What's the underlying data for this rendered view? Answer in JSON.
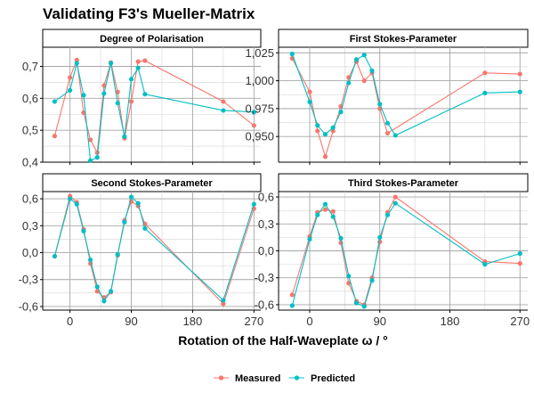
{
  "title": "Validating F3's Mueller-Matrix",
  "xlabel": "Rotation of the Half-Waveplate ω / °",
  "legend": [
    {
      "label": "Measured",
      "color": "#F8766D"
    },
    {
      "label": "Predicted",
      "color": "#00BFC4"
    }
  ],
  "chart_data": [
    {
      "type": "line",
      "title": "Degree of Polarisation",
      "xlim": [
        -40,
        280
      ],
      "ylim": [
        0.4,
        0.76
      ],
      "x_ticks": [
        0,
        90,
        180,
        270
      ],
      "y_ticks": [
        0.4,
        0.5,
        0.6,
        0.7
      ],
      "y_tick_labels": [
        "0,4",
        "0,5",
        "0,6",
        "0,7"
      ],
      "x_tick_labels": [],
      "series": [
        {
          "name": "Measured",
          "color": "#F8766D",
          "x": [
            -22.5,
            0,
            10,
            20,
            30,
            40,
            50,
            60,
            70,
            80,
            90,
            100,
            110,
            225,
            270
          ],
          "y": [
            0.482,
            0.665,
            0.72,
            0.555,
            0.47,
            0.43,
            0.64,
            0.712,
            0.62,
            0.475,
            0.59,
            0.715,
            0.718,
            0.59,
            0.515
          ]
        },
        {
          "name": "Predicted",
          "color": "#00BFC4",
          "x": [
            -22.5,
            0,
            10,
            20,
            30,
            40,
            50,
            60,
            70,
            80,
            90,
            100,
            110,
            225,
            270
          ],
          "y": [
            0.59,
            0.625,
            0.71,
            0.61,
            0.405,
            0.415,
            0.615,
            0.71,
            0.585,
            0.48,
            0.66,
            0.695,
            0.613,
            0.562,
            0.557
          ]
        }
      ]
    },
    {
      "type": "line",
      "title": "First Stokes-Parameter",
      "xlim": [
        -40,
        280
      ],
      "ylim": [
        0.927,
        1.03
      ],
      "x_ticks": [
        0,
        90,
        180,
        270
      ],
      "y_ticks": [
        0.95,
        0.975,
        1.0,
        1.025
      ],
      "y_tick_labels": [
        "0,950",
        "0,975",
        "1,000",
        "1,025"
      ],
      "x_tick_labels": [],
      "series": [
        {
          "name": "Measured",
          "color": "#F8766D",
          "x": [
            -22.5,
            0,
            10,
            20,
            30,
            40,
            50,
            60,
            70,
            80,
            90,
            100,
            225,
            270
          ],
          "y": [
            1.02,
            0.99,
            0.955,
            0.932,
            0.955,
            0.977,
            1.003,
            1.017,
            1.0,
            1.007,
            0.975,
            0.953,
            1.007,
            1.006
          ]
        },
        {
          "name": "Predicted",
          "color": "#00BFC4",
          "x": [
            -22.5,
            0,
            10,
            20,
            30,
            40,
            50,
            60,
            70,
            80,
            90,
            100,
            110,
            225,
            270
          ],
          "y": [
            1.024,
            0.981,
            0.96,
            0.952,
            0.958,
            0.972,
            0.998,
            1.019,
            1.023,
            1.009,
            0.979,
            0.962,
            0.951,
            0.989,
            0.99
          ]
        }
      ]
    },
    {
      "type": "line",
      "title": "Second Stokes-Parameter",
      "xlim": [
        -40,
        280
      ],
      "ylim": [
        -0.64,
        0.68
      ],
      "x_ticks": [
        0,
        90,
        180,
        270
      ],
      "y_ticks": [
        -0.6,
        -0.3,
        0.0,
        0.3,
        0.6
      ],
      "y_tick_labels": [
        "-0,6",
        "-0,3",
        "0,0",
        "0,3",
        "0,6"
      ],
      "x_tick_labels": [
        "0",
        "90",
        "180",
        "270"
      ],
      "series": [
        {
          "name": "Measured",
          "color": "#F8766D",
          "x": [
            -22.5,
            0,
            10,
            20,
            30,
            40,
            50,
            60,
            70,
            80,
            90,
            100,
            110,
            225,
            270
          ],
          "y": [
            -0.04,
            0.63,
            0.56,
            0.26,
            -0.12,
            -0.43,
            -0.5,
            -0.44,
            -0.03,
            0.36,
            0.57,
            0.52,
            0.32,
            -0.57,
            0.49
          ]
        },
        {
          "name": "Predicted",
          "color": "#00BFC4",
          "x": [
            -22.5,
            0,
            10,
            20,
            30,
            40,
            50,
            60,
            70,
            80,
            90,
            100,
            110,
            225,
            270
          ],
          "y": [
            -0.04,
            0.6,
            0.54,
            0.24,
            -0.08,
            -0.38,
            -0.54,
            -0.43,
            -0.02,
            0.34,
            0.62,
            0.55,
            0.27,
            -0.53,
            0.54
          ]
        }
      ]
    },
    {
      "type": "line",
      "title": "Third Stokes-Parameter",
      "xlim": [
        -40,
        280
      ],
      "ylim": [
        -0.66,
        0.66
      ],
      "x_ticks": [
        0,
        90,
        180,
        270
      ],
      "y_ticks": [
        -0.6,
        -0.3,
        0.0,
        0.3,
        0.6
      ],
      "y_tick_labels": [
        "-0,6",
        "-0,3",
        "0,0",
        "0,3",
        "0,6"
      ],
      "x_tick_labels": [
        "0",
        "90",
        "180",
        "270"
      ],
      "series": [
        {
          "name": "Measured",
          "color": "#F8766D",
          "x": [
            -22.5,
            0,
            10,
            20,
            30,
            40,
            50,
            60,
            70,
            80,
            90,
            100,
            110,
            225,
            270
          ],
          "y": [
            -0.49,
            0.16,
            0.43,
            0.46,
            0.44,
            0.09,
            -0.36,
            -0.56,
            -0.6,
            -0.3,
            0.1,
            0.43,
            0.6,
            -0.12,
            -0.14
          ]
        },
        {
          "name": "Predicted",
          "color": "#00BFC4",
          "x": [
            -22.5,
            0,
            10,
            20,
            30,
            40,
            50,
            60,
            70,
            80,
            90,
            100,
            110,
            225,
            270
          ],
          "y": [
            -0.61,
            0.13,
            0.4,
            0.52,
            0.38,
            0.14,
            -0.28,
            -0.58,
            -0.62,
            -0.33,
            0.15,
            0.4,
            0.53,
            -0.15,
            -0.03
          ]
        }
      ]
    }
  ]
}
